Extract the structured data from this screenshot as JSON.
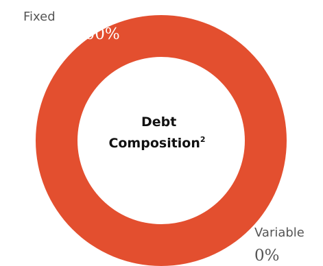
{
  "chart_data": {
    "type": "pie",
    "variant": "donut",
    "center_title": [
      "Debt",
      "Composition"
    ],
    "center_title_superscript": "2",
    "categories": [
      "Fixed",
      "Variable"
    ],
    "values": [
      100,
      0
    ],
    "value_labels": [
      "100%",
      "0%"
    ],
    "legend": "none",
    "colors": {
      "Fixed": "#e34f2f",
      "Variable": "#e34f2f",
      "fixed_value_text": "#ffffff",
      "variable_value_text": "#555555",
      "hole": "#ffffff"
    }
  }
}
